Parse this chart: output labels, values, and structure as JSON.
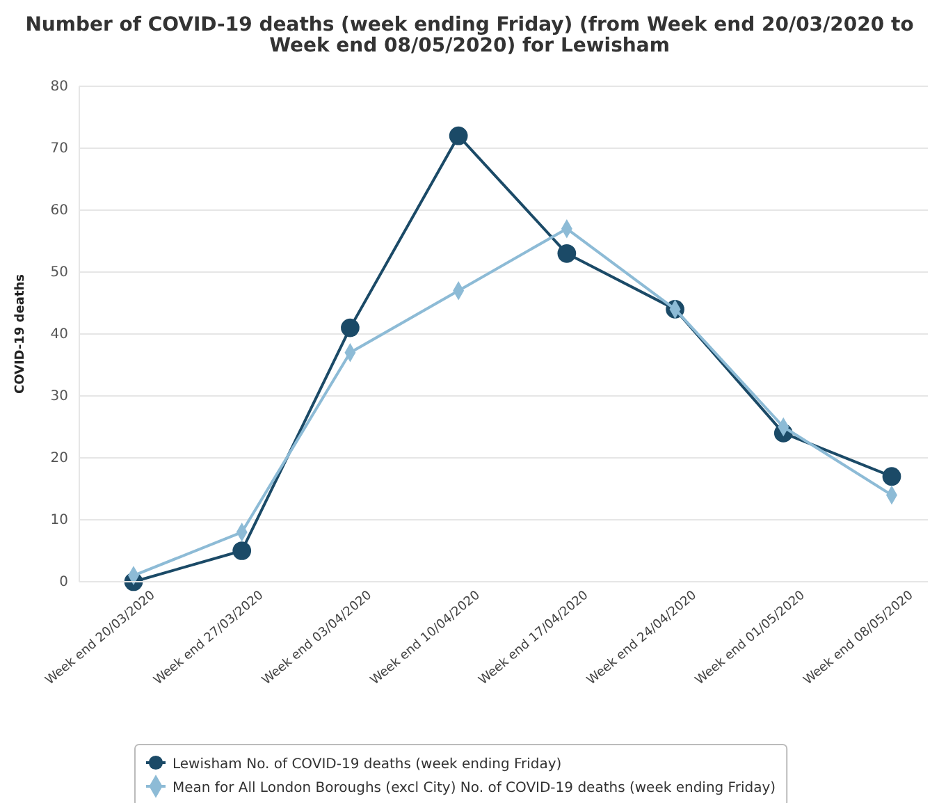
{
  "chart_data": {
    "type": "line",
    "title": "Number of COVID-19 deaths (week ending Friday) (from Week end 20/03/2020 to Week end 08/05/2020) for Lewisham",
    "ylabel": "COVID-19 deaths",
    "categories": [
      "Week end 20/03/2020",
      "Week end 27/03/2020",
      "Week end 03/04/2020",
      "Week end 10/04/2020",
      "Week end 17/04/2020",
      "Week end 24/04/2020",
      "Week end 01/05/2020",
      "Week end 08/05/2020"
    ],
    "series": [
      {
        "name": "Lewisham No. of COVID-19 deaths (week ending Friday)",
        "color": "#1b4a67",
        "marker": "circle",
        "values": [
          0,
          5,
          41,
          72,
          53,
          44,
          24,
          17
        ]
      },
      {
        "name": "Mean for All London Boroughs (excl City) No. of COVID-19 deaths (week ending Friday)",
        "color": "#8dbbd6",
        "marker": "diamond",
        "values": [
          1,
          8,
          37,
          47,
          57,
          44,
          25,
          14
        ]
      }
    ],
    "ylim": [
      0,
      80
    ],
    "yticks": [
      0,
      10,
      20,
      30,
      40,
      50,
      60,
      70,
      80
    ],
    "grid": "y",
    "legend": "bottom",
    "line_style": "solid"
  }
}
